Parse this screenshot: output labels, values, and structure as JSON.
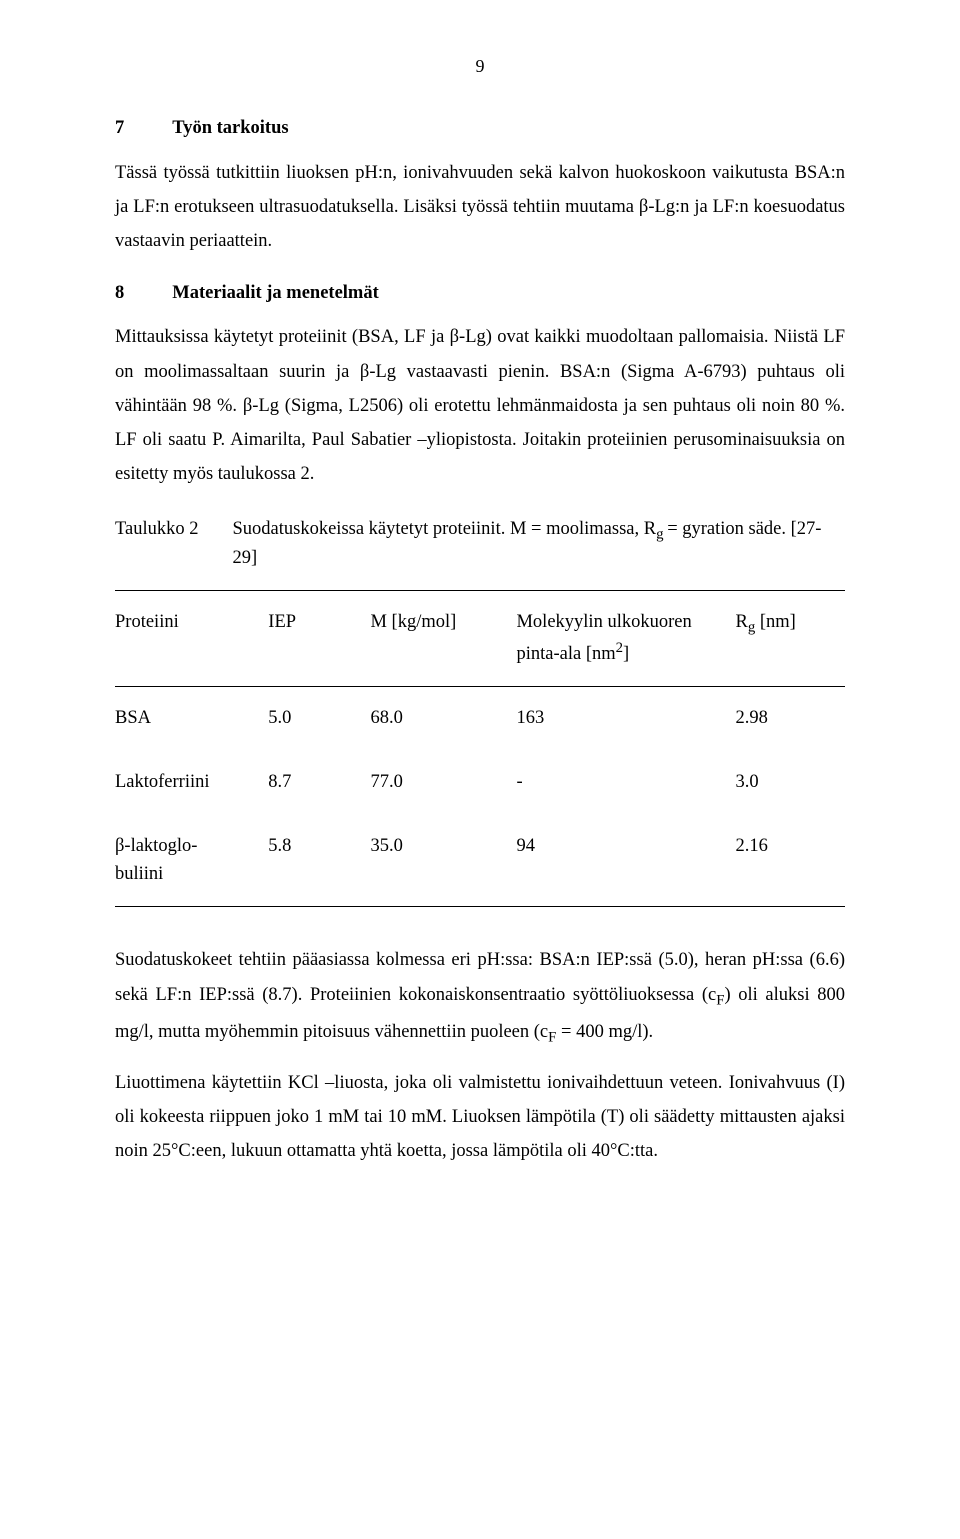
{
  "page_number": "9",
  "section7": {
    "number": "7",
    "title": "Työn tarkoitus",
    "p1": "Tässä työssä tutkittiin liuoksen pH:n, ionivahvuuden sekä kalvon huokoskoon vaikutusta BSA:n ja LF:n erotukseen ultrasuodatuksella. Lisäksi työssä tehtiin muutama β-Lg:n ja LF:n koesuodatus vastaavin periaattein."
  },
  "section8": {
    "number": "8",
    "title": "Materiaalit ja menetelmät",
    "p1": "Mittauksissa käytetyt proteiinit (BSA, LF ja β-Lg) ovat kaikki muodoltaan pallomaisia. Niistä LF on moolimassaltaan suurin ja β-Lg vastaavasti pienin. BSA:n (Sigma A-6793) puhtaus oli vähintään 98 %. β-Lg (Sigma, L2506) oli erotettu lehmänmaidosta ja sen puhtaus oli noin 80 %. LF oli saatu P. Aimarilta, Paul Sabatier –yliopistosta. Joitakin proteiinien perusominaisuuksia on esitetty myös taulukossa 2."
  },
  "table2": {
    "label": "Taulukko 2",
    "caption_pre": "Suodatuskokeissa käytetyt proteiinit. M = moolimassa,  R",
    "caption_sub": "g ",
    "caption_post": "= gyration säde. [27-29]",
    "headers": {
      "protein": "Proteiini",
      "iep": "IEP",
      "mass": "M [kg/mol]",
      "surface_line1": "Molekyylin ulkokuoren",
      "surface_line2_pre": "pinta-ala [nm",
      "surface_line2_sup": "2",
      "surface_line2_post": "]",
      "rg_pre": "R",
      "rg_sub": "g",
      "rg_post": " [nm]"
    },
    "rows": [
      {
        "protein": "BSA",
        "iep": "5.0",
        "mass": "68.0",
        "surface": "163",
        "rg": "2.98"
      },
      {
        "protein": "Laktoferriini",
        "iep": "8.7",
        "mass": "77.0",
        "surface": "-",
        "rg": "3.0"
      },
      {
        "protein_line1": "β-laktoglo-",
        "protein_line2": "buliini",
        "iep": "5.8",
        "mass": "35.0",
        "surface": "94",
        "rg": "2.16"
      }
    ]
  },
  "body_after_table": {
    "p1_pre": "Suodatuskokeet tehtiin pääasiassa kolmessa eri pH:ssa: BSA:n IEP:ssä (5.0), heran pH:ssa (6.6) sekä LF:n IEP:ssä (8.7). Proteiinien kokonaiskonsentraatio syöttöliuoksessa (c",
    "p1_sub1": "F",
    "p1_mid": ") oli aluksi 800 mg/l, mutta myöhemmin pitoisuus vähennettiin puoleen (c",
    "p1_sub2": "F",
    "p1_post": " = 400 mg/l).",
    "p2": "Liuottimena käytettiin KCl –liuosta, joka oli valmistettu ionivaihdettuun veteen. Ionivahvuus (I) oli kokeesta riippuen joko 1 mM tai 10 mM. Liuoksen lämpötila (T) oli säädetty mittausten ajaksi noin 25°C:een, lukuun ottamatta yhtä koetta, jossa lämpötila oli 40°C:tta."
  }
}
